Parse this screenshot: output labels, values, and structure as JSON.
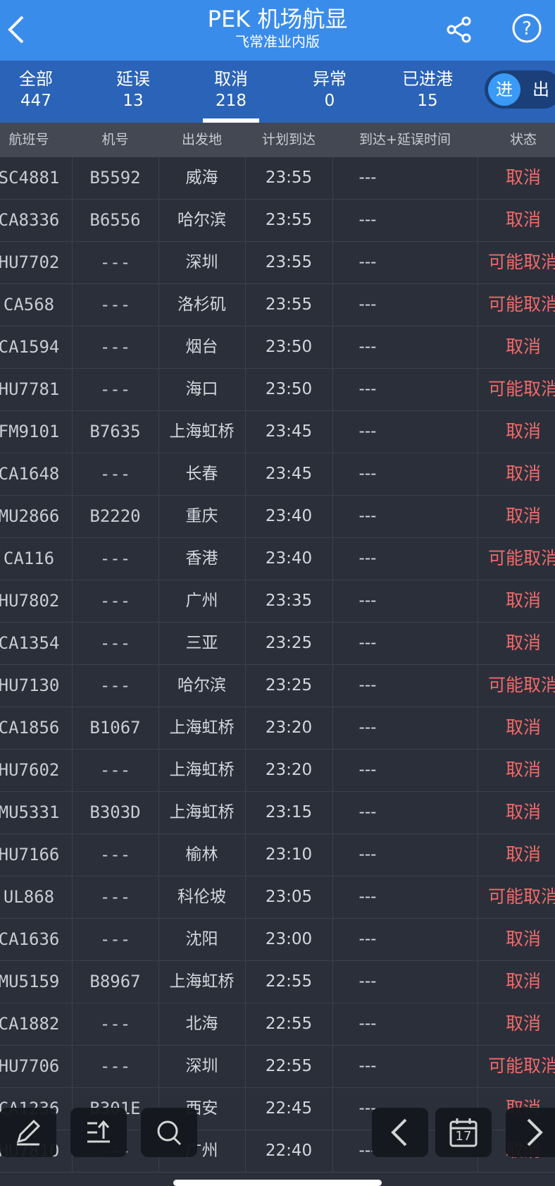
{
  "header": {
    "title": "PEK 机场航显",
    "subtitle": "飞常准业内版"
  },
  "tabs": [
    {
      "label": "全部",
      "count": "447"
    },
    {
      "label": "延误",
      "count": "13"
    },
    {
      "label": "取消",
      "count": "218"
    },
    {
      "label": "异常",
      "count": "0"
    },
    {
      "label": "已进港",
      "count": "15"
    }
  ],
  "toggle": {
    "on": "进",
    "off": "出"
  },
  "columns": [
    "航班号",
    "机号",
    "出发地",
    "计划到达",
    "到达+延误时间",
    "状态"
  ],
  "rows": [
    [
      "SC4881",
      "B5592",
      "威海",
      "23:55",
      "---",
      "取消"
    ],
    [
      "CA8336",
      "B6556",
      "哈尔滨",
      "23:55",
      "---",
      "取消"
    ],
    [
      "HU7702",
      "---",
      "深圳",
      "23:55",
      "---",
      "可能取消"
    ],
    [
      "CA568",
      "---",
      "洛杉矶",
      "23:55",
      "---",
      "可能取消"
    ],
    [
      "CA1594",
      "---",
      "烟台",
      "23:50",
      "---",
      "取消"
    ],
    [
      "HU7781",
      "---",
      "海口",
      "23:50",
      "---",
      "可能取消"
    ],
    [
      "FM9101",
      "B7635",
      "上海虹桥",
      "23:45",
      "---",
      "取消"
    ],
    [
      "CA1648",
      "---",
      "长春",
      "23:45",
      "---",
      "取消"
    ],
    [
      "MU2866",
      "B2220",
      "重庆",
      "23:40",
      "---",
      "取消"
    ],
    [
      "CA116",
      "---",
      "香港",
      "23:40",
      "---",
      "可能取消"
    ],
    [
      "HU7802",
      "---",
      "广州",
      "23:35",
      "---",
      "取消"
    ],
    [
      "CA1354",
      "---",
      "三亚",
      "23:25",
      "---",
      "取消"
    ],
    [
      "HU7130",
      "---",
      "哈尔滨",
      "23:25",
      "---",
      "可能取消"
    ],
    [
      "CA1856",
      "B1067",
      "上海虹桥",
      "23:20",
      "---",
      "取消"
    ],
    [
      "HU7602",
      "---",
      "上海虹桥",
      "23:20",
      "---",
      "取消"
    ],
    [
      "MU5331",
      "B303D",
      "上海虹桥",
      "23:15",
      "---",
      "取消"
    ],
    [
      "HU7166",
      "---",
      "榆林",
      "23:10",
      "---",
      "取消"
    ],
    [
      "UL868",
      "---",
      "科伦坡",
      "23:05",
      "---",
      "可能取消"
    ],
    [
      "CA1636",
      "---",
      "沈阳",
      "23:00",
      "---",
      "取消"
    ],
    [
      "MU5159",
      "B8967",
      "上海虹桥",
      "22:55",
      "---",
      "取消"
    ],
    [
      "CA1882",
      "---",
      "北海",
      "22:55",
      "---",
      "取消"
    ],
    [
      "HU7706",
      "---",
      "深圳",
      "22:55",
      "---",
      "可能取消"
    ],
    [
      "CA1236",
      "B301E",
      "西安",
      "22:45",
      "---",
      "取消"
    ],
    [
      "HU7810",
      "---",
      "广州",
      "22:40",
      "---",
      "取消"
    ]
  ],
  "toolbar": {
    "calendar_day": "17"
  }
}
